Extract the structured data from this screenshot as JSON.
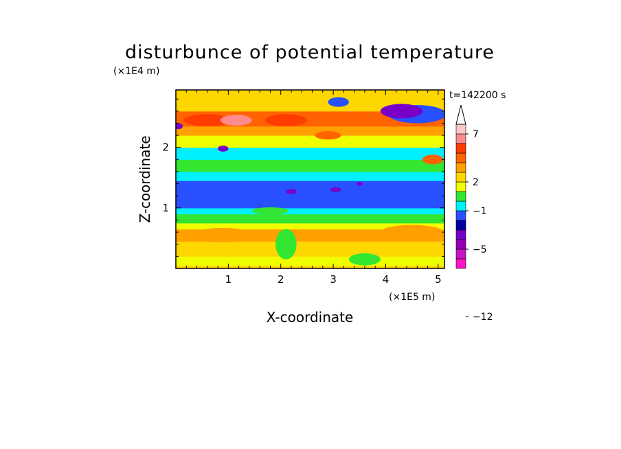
{
  "chart_data": {
    "type": "heatmap",
    "title": "disturbunce of potential temperature",
    "time_label": "t=142200 s",
    "xlabel": "X-coordinate",
    "ylabel": "Z-coordinate",
    "x_unit": "(×1E5 m)",
    "y_unit": "(×1E4 m)",
    "xlim": [
      0,
      5.12
    ],
    "ylim": [
      0,
      2.95
    ],
    "x_ticks": [
      1,
      2,
      3,
      4,
      5
    ],
    "y_ticks": [
      1,
      2
    ],
    "colorbar": {
      "levels": [
        -12,
        -5,
        -1,
        2,
        7
      ],
      "colors": [
        "#ff14c8",
        "#c814c8",
        "#9600b4",
        "#7800c8",
        "#0000a0",
        "#2850ff",
        "#00f0ff",
        "#32e632",
        "#f0ff00",
        "#ffd700",
        "#ffa000",
        "#ff6400",
        "#ff3c00",
        "#ff8c8c",
        "#ffc8c8"
      ]
    },
    "bands": [
      {
        "z": [
          0.0,
          0.05
        ],
        "v": 2
      },
      {
        "z": [
          0.05,
          0.2
        ],
        "v": 1
      },
      {
        "z": [
          0.2,
          0.45
        ],
        "v": 2
      },
      {
        "z": [
          0.45,
          0.65
        ],
        "v": 3
      },
      {
        "z": [
          0.65,
          0.75
        ],
        "v": 1
      },
      {
        "z": [
          0.75,
          0.9
        ],
        "v": 0
      },
      {
        "z": [
          0.9,
          1.0
        ],
        "v": -1
      },
      {
        "z": [
          1.0,
          1.45
        ],
        "v": -2
      },
      {
        "z": [
          1.45,
          1.6
        ],
        "v": -1
      },
      {
        "z": [
          1.6,
          1.8
        ],
        "v": 0
      },
      {
        "z": [
          1.8,
          2.0
        ],
        "v": -1
      },
      {
        "z": [
          2.0,
          2.2
        ],
        "v": 1
      },
      {
        "z": [
          2.2,
          2.35
        ],
        "v": 3
      },
      {
        "z": [
          2.35,
          2.6
        ],
        "v": 4
      },
      {
        "z": [
          2.6,
          2.95
        ],
        "v": 2
      }
    ],
    "blobs": [
      {
        "x": 0.6,
        "z": 2.45,
        "rx": 0.45,
        "rz": 0.1,
        "v": 5
      },
      {
        "x": 1.15,
        "z": 2.45,
        "rx": 0.3,
        "rz": 0.09,
        "v": 6
      },
      {
        "x": 2.1,
        "z": 2.45,
        "rx": 0.4,
        "rz": 0.1,
        "v": 5
      },
      {
        "x": 2.9,
        "z": 2.2,
        "rx": 0.25,
        "rz": 0.07,
        "v": 4
      },
      {
        "x": 4.9,
        "z": 1.8,
        "rx": 0.2,
        "rz": 0.08,
        "v": 4
      },
      {
        "x": 4.6,
        "z": 2.55,
        "rx": 0.55,
        "rz": 0.15,
        "v": -2
      },
      {
        "x": 4.3,
        "z": 2.6,
        "rx": 0.4,
        "rz": 0.12,
        "v": -4
      },
      {
        "x": 0.05,
        "z": 2.35,
        "rx": 0.08,
        "rz": 0.05,
        "v": -4
      },
      {
        "x": 0.9,
        "z": 1.98,
        "rx": 0.1,
        "rz": 0.05,
        "v": -4
      },
      {
        "x": 3.1,
        "z": 2.75,
        "rx": 0.2,
        "rz": 0.08,
        "v": -2
      },
      {
        "x": 1.95,
        "z": 1.3,
        "rx": 0.3,
        "rz": 0.1,
        "v": -2
      },
      {
        "x": 3.1,
        "z": 1.3,
        "rx": 0.35,
        "rz": 0.08,
        "v": -2
      },
      {
        "x": 3.05,
        "z": 1.3,
        "rx": 0.1,
        "rz": 0.04,
        "v": -4
      },
      {
        "x": 3.5,
        "z": 1.4,
        "rx": 0.06,
        "rz": 0.03,
        "v": -4
      },
      {
        "x": 2.2,
        "z": 1.27,
        "rx": 0.1,
        "rz": 0.04,
        "v": -4
      },
      {
        "x": 1.8,
        "z": 0.95,
        "rx": 0.35,
        "rz": 0.06,
        "v": 0
      },
      {
        "x": 2.1,
        "z": 0.4,
        "rx": 0.2,
        "rz": 0.25,
        "v": 0
      },
      {
        "x": 4.5,
        "z": 0.6,
        "rx": 0.6,
        "rz": 0.12,
        "v": 3
      },
      {
        "x": 0.9,
        "z": 0.55,
        "rx": 0.6,
        "rz": 0.12,
        "v": 3
      },
      {
        "x": 3.6,
        "z": 0.15,
        "rx": 0.3,
        "rz": 0.1,
        "v": 0
      }
    ]
  }
}
